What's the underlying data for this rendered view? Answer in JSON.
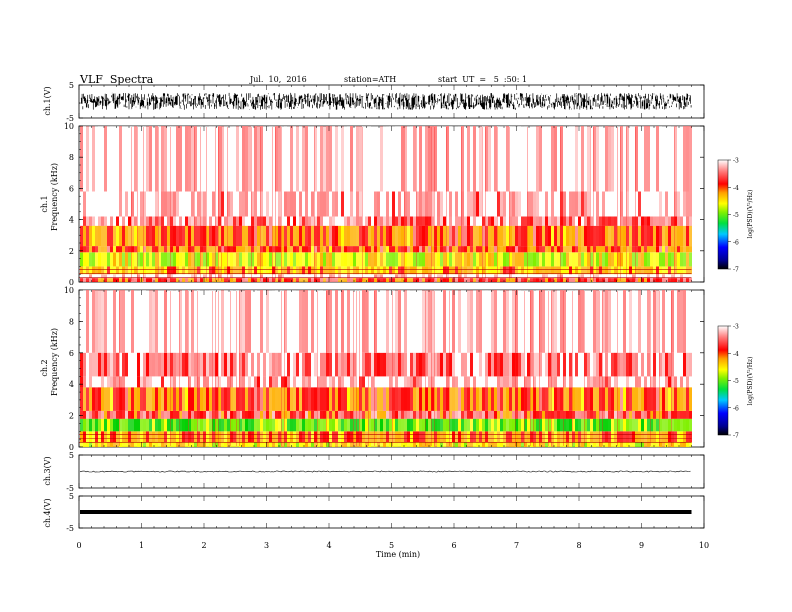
{
  "header": {
    "title": "VLF  Spectra",
    "date": "Jul.  10,  2016",
    "station": "station=ATH",
    "start": "start  UT  =   5  :50: 1"
  },
  "chart_data": [
    {
      "type": "line",
      "panel": "ch1-waveform",
      "ylabel": "ch.1(V)",
      "ylim": [
        -5,
        5
      ],
      "y_ticks": [
        "5",
        "-5"
      ],
      "x_range_min": [
        0,
        9.8
      ],
      "description_values": {
        "amplitude_envelope_V": [
          -2.5,
          2.6
        ]
      }
    },
    {
      "type": "heatmap",
      "panel": "ch1-spectrogram",
      "ylabel": "ch.1\nFrequency  (kHz)",
      "ylabel_lines": [
        "ch.1",
        "Frequency  (kHz)"
      ],
      "ylim_kHz": [
        0,
        10
      ],
      "y_ticks": [
        "0",
        "2",
        "4",
        "6",
        "8",
        "10"
      ],
      "bands_kHz_logPSD": [
        {
          "from": 0.0,
          "to": 0.25,
          "level": -3.8
        },
        {
          "from": 0.25,
          "to": 0.5,
          "level": -3.0
        },
        {
          "from": 0.5,
          "to": 1.0,
          "level": -4.2
        },
        {
          "from": 1.0,
          "to": 1.9,
          "level": -4.5
        },
        {
          "from": 1.9,
          "to": 2.3,
          "level": -3.9
        },
        {
          "from": 2.3,
          "to": 3.6,
          "level": -3.9
        },
        {
          "from": 3.6,
          "to": 4.2,
          "level": -3.4
        },
        {
          "from": 4.2,
          "to": 5.8,
          "level": -3.2
        },
        {
          "from": 5.8,
          "to": 10.0,
          "level": -3.1
        }
      ],
      "colorbar": {
        "label": "log(PSD)(V²/Hz)",
        "range": [
          -7,
          -3
        ],
        "ticks": [
          "-3",
          "-4",
          "-5",
          "-6",
          "-7"
        ]
      }
    },
    {
      "type": "heatmap",
      "panel": "ch2-spectrogram",
      "ylabel": "ch.2\nFrequency  (kHz)",
      "ylabel_lines": [
        "ch.2",
        "Frequency  (kHz)"
      ],
      "ylim_kHz": [
        0,
        10
      ],
      "y_ticks": [
        "0",
        "2",
        "4",
        "6",
        "8",
        "10"
      ],
      "bands_kHz_logPSD": [
        {
          "from": 0.0,
          "to": 0.3,
          "level": -4.3
        },
        {
          "from": 0.3,
          "to": 1.0,
          "level": -4.0
        },
        {
          "from": 1.0,
          "to": 1.8,
          "level": -4.9
        },
        {
          "from": 1.8,
          "to": 2.3,
          "level": -3.6
        },
        {
          "from": 2.3,
          "to": 3.8,
          "level": -3.9
        },
        {
          "from": 3.8,
          "to": 4.5,
          "level": -3.2
        },
        {
          "from": 4.5,
          "to": 6.0,
          "level": -3.4
        },
        {
          "from": 6.0,
          "to": 10.0,
          "level": -3.1
        }
      ],
      "colorbar": {
        "label": "log(PSD)(V²/Hz)",
        "range": [
          -7,
          -3
        ],
        "ticks": [
          "-3",
          "-4",
          "-5",
          "-6",
          "-7"
        ]
      }
    },
    {
      "type": "line",
      "panel": "ch3-waveform",
      "ylabel": "ch.3(V)",
      "ylim": [
        -5,
        5
      ],
      "y_ticks": [
        "5",
        "-5"
      ],
      "description_values": {
        "baseline_V": 0.0
      }
    },
    {
      "type": "line",
      "panel": "ch4-waveform",
      "ylabel": "ch.4(V)",
      "ylim": [
        -5,
        5
      ],
      "y_ticks": [
        "5",
        "-5"
      ],
      "description_values": {
        "baseline_V": 0.0
      }
    }
  ],
  "x_axis": {
    "label": "Time  (min)",
    "range": [
      0,
      10
    ],
    "ticks": [
      "0",
      "1",
      "2",
      "3",
      "4",
      "5",
      "6",
      "7",
      "8",
      "9",
      "10"
    ],
    "data_end_min": 9.8
  },
  "colors": {
    "psd_scale": [
      "#000000",
      "#000080",
      "#0000ff",
      "#00a0ff",
      "#00e0e0",
      "#00d000",
      "#80f000",
      "#ffff00",
      "#ffb000",
      "#ff0000",
      "#ff8080",
      "#ffffff"
    ]
  }
}
